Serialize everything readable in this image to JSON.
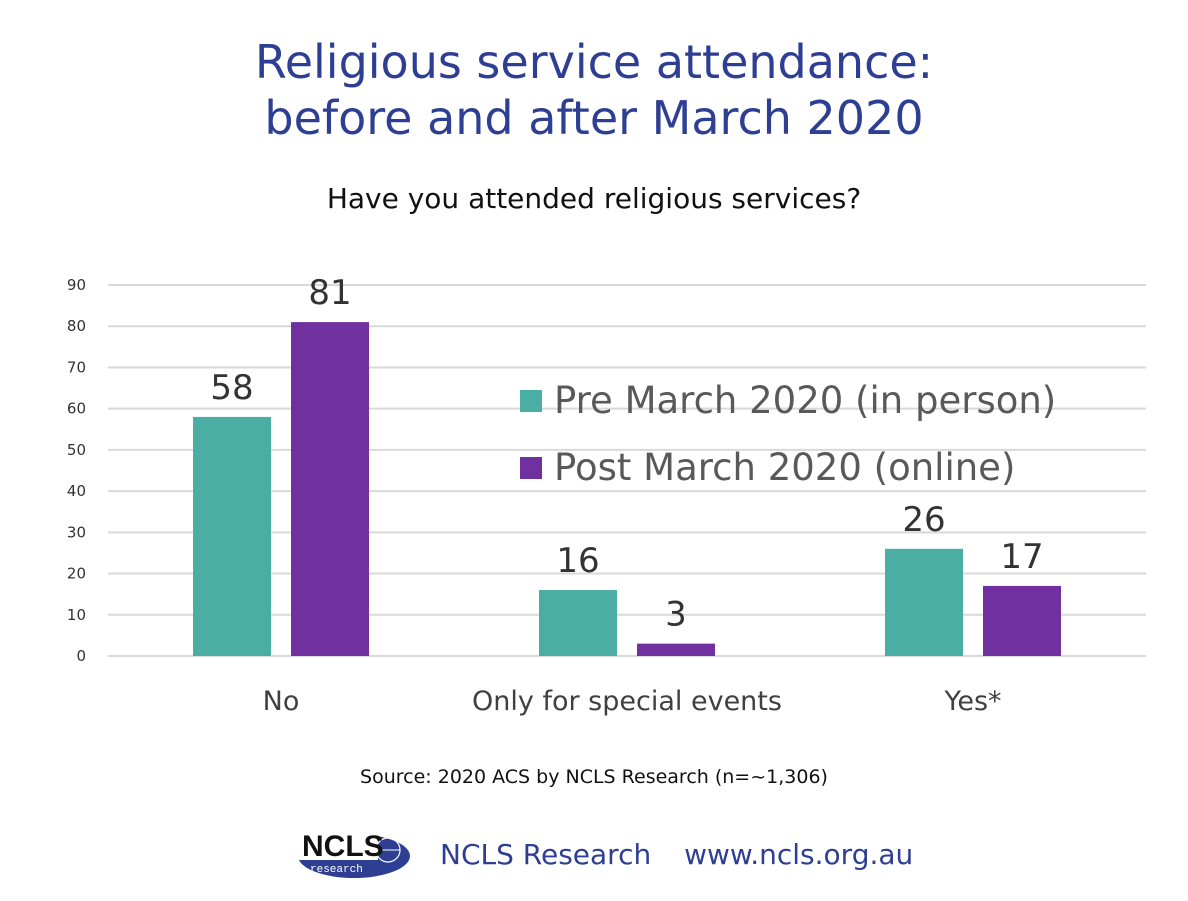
{
  "header": {
    "title_line1": "Religious service attendance:",
    "title_line2": "before and after March 2020",
    "subtitle": "Have you attended religious services?"
  },
  "colors": {
    "pre": "#4aaea4",
    "post": "#7030a0",
    "grid": "#d9d9d9",
    "title": "#2e3f93"
  },
  "chart_data": {
    "type": "bar",
    "categories": [
      "No",
      "Only for special events",
      "Yes*"
    ],
    "series": [
      {
        "name": "Pre March 2020 (in person)",
        "values": [
          58,
          16,
          26
        ]
      },
      {
        "name": "Post March 2020 (online)",
        "values": [
          81,
          3,
          17
        ]
      }
    ],
    "ylim": [
      0,
      90
    ],
    "yticks": [
      0,
      10,
      20,
      30,
      40,
      50,
      60,
      70,
      80,
      90
    ],
    "grid": true,
    "legend_position": "right, upper middle"
  },
  "footer": {
    "source": "Source: 2020 ACS by NCLS Research (n=~1,306)",
    "org": "NCLS Research",
    "url": "www.ncls.org.au",
    "logo_text": "NCLS",
    "logo_subtext": "research"
  }
}
